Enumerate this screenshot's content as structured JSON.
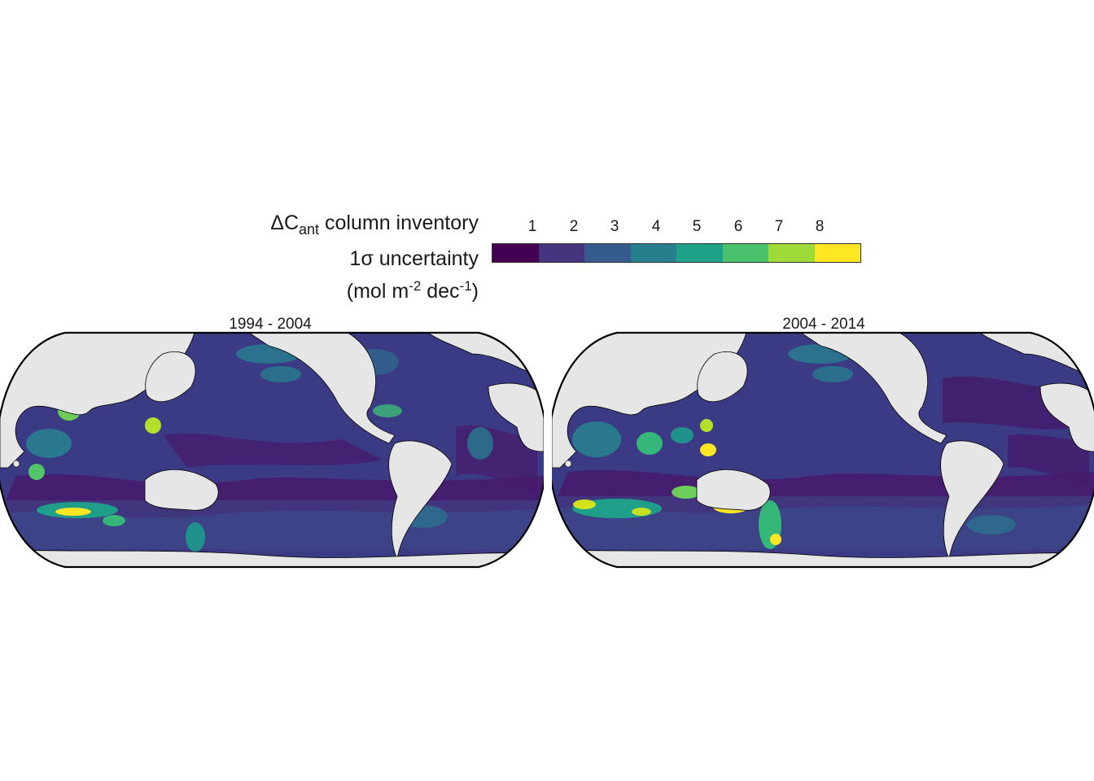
{
  "legend": {
    "title_line1_main": "ΔC",
    "title_line1_sub": "ant",
    "title_line1_rest": " column inventory",
    "title_line2": "1σ uncertainty",
    "title_line3_a": "(mol m",
    "title_line3_sup1": "-2",
    "title_line3_b": " dec",
    "title_line3_sup2": "-1",
    "title_line3_c": ")",
    "ticks": [
      "1",
      "2",
      "3",
      "4",
      "5",
      "6",
      "7",
      "8"
    ],
    "colors": [
      "#440154",
      "#46337e",
      "#365c8d",
      "#277f8e",
      "#1fa187",
      "#4ac16d",
      "#a0da39",
      "#fde725"
    ]
  },
  "panels": [
    {
      "title": "1994 - 2004"
    },
    {
      "title": "2004 - 2014"
    }
  ],
  "map_colors": {
    "land": "#e6e6e6",
    "ocean_base": "#3b3a84",
    "border": "#000000"
  }
}
